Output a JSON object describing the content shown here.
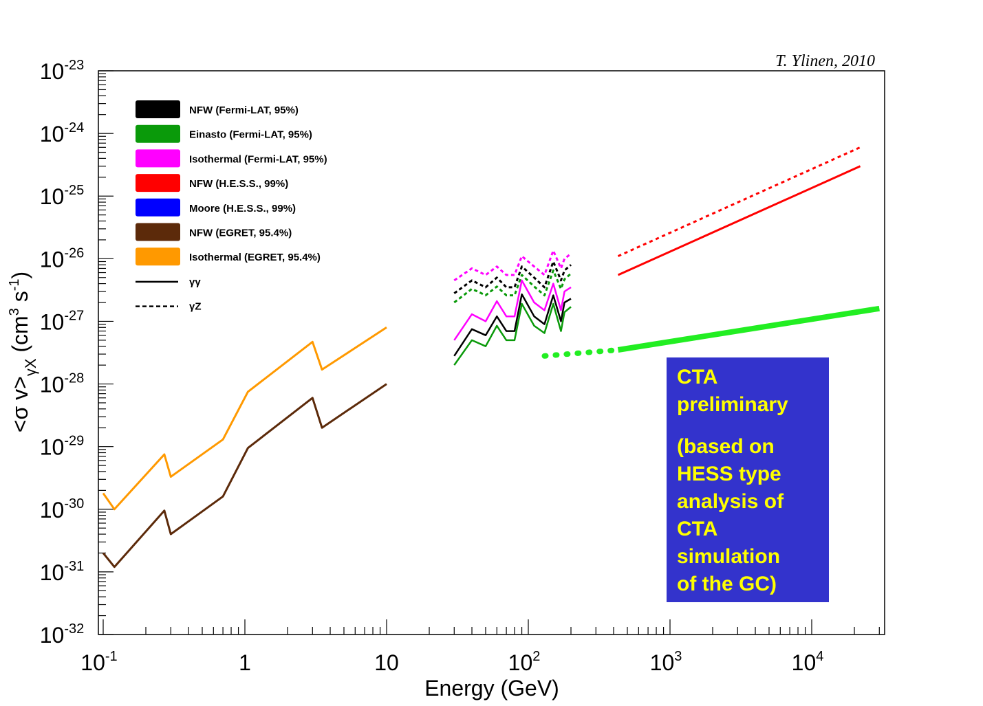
{
  "credit": "T. Ylinen, 2010",
  "chart_data": {
    "type": "line",
    "xlabel": "Energy (GeV)",
    "ylabel": "<σ v>",
    "ylabel_sub": "γX",
    "ylabel_unit_open": "(cm",
    "ylabel_unit_exp1": "3",
    "ylabel_unit_mid": " s",
    "ylabel_unit_exp2": "-1",
    "ylabel_unit_close": ")",
    "xscale": "log",
    "yscale": "log",
    "xlim": [
      0.1,
      30000
    ],
    "ylim": [
      1e-32,
      1e-23
    ],
    "x_ticks": [
      {
        "base": "10",
        "exp": "-1",
        "value": 0.1
      },
      {
        "base": "1",
        "exp": "",
        "value": 1
      },
      {
        "base": "10",
        "exp": "",
        "value": 10
      },
      {
        "base": "10",
        "exp": "2",
        "value": 100
      },
      {
        "base": "10",
        "exp": "3",
        "value": 1000
      },
      {
        "base": "10",
        "exp": "4",
        "value": 10000
      }
    ],
    "y_ticks": [
      {
        "base": "10",
        "exp": "-23",
        "value": 1e-23
      },
      {
        "base": "10",
        "exp": "-24",
        "value": 1e-24
      },
      {
        "base": "10",
        "exp": "-25",
        "value": 1e-25
      },
      {
        "base": "10",
        "exp": "-26",
        "value": 1e-26
      },
      {
        "base": "10",
        "exp": "-27",
        "value": 1e-27
      },
      {
        "base": "10",
        "exp": "-28",
        "value": 1e-28
      },
      {
        "base": "10",
        "exp": "-29",
        "value": 1e-29
      },
      {
        "base": "10",
        "exp": "-30",
        "value": 1e-30
      },
      {
        "base": "10",
        "exp": "-31",
        "value": 1e-31
      },
      {
        "base": "10",
        "exp": "-32",
        "value": 1e-32
      }
    ],
    "legend": [
      {
        "label": "NFW (Fermi-LAT, 95%)",
        "color": "#000000",
        "kind": "box"
      },
      {
        "label": "Einasto (Fermi-LAT, 95%)",
        "color": "#0a9a0a",
        "kind": "box"
      },
      {
        "label": "Isothermal (Fermi-LAT, 95%)",
        "color": "#ff00ff",
        "kind": "box"
      },
      {
        "label": "NFW (H.E.S.S., 99%)",
        "color": "#ff0000",
        "kind": "box"
      },
      {
        "label": "Moore (H.E.S.S., 99%)",
        "color": "#0000ff",
        "kind": "box"
      },
      {
        "label": "NFW (EGRET, 95.4%)",
        "color": "#5c2a0a",
        "kind": "box"
      },
      {
        "label": "Isothermal (EGRET, 95.4%)",
        "color": "#ff9900",
        "kind": "box"
      },
      {
        "label": "γγ",
        "color": "#000000",
        "kind": "solid"
      },
      {
        "label": "γZ",
        "color": "#000000",
        "kind": "dashed"
      }
    ],
    "series": [
      {
        "name": "Isothermal (EGRET, 95.4%)",
        "color": "#ff9900",
        "dash": "",
        "width": 3,
        "x": [
          0.1,
          0.12,
          0.27,
          0.3,
          0.7,
          1.05,
          3.0,
          3.5,
          10
        ],
        "y": [
          1.8e-30,
          1e-30,
          7.5e-30,
          3.3e-30,
          1.3e-29,
          7.5e-29,
          4.7e-28,
          1.7e-28,
          8e-28
        ]
      },
      {
        "name": "NFW (EGRET, 95.4%)",
        "color": "#5c2a0a",
        "dash": "",
        "width": 3,
        "x": [
          0.1,
          0.12,
          0.27,
          0.3,
          0.7,
          1.05,
          3.0,
          3.5,
          10
        ],
        "y": [
          2e-31,
          1.2e-31,
          9.5e-31,
          4e-31,
          1.6e-30,
          9.5e-30,
          6e-29,
          2e-29,
          1e-28
        ]
      },
      {
        "name": "Isothermal (Fermi-LAT, 95%) γγ",
        "color": "#ff00ff",
        "dash": "",
        "width": 2.5,
        "x": [
          30,
          40,
          50,
          60,
          70,
          80,
          90,
          110,
          130,
          150,
          170,
          180,
          200
        ],
        "y": [
          5e-28,
          1.3e-27,
          1e-27,
          2.1e-27,
          1.2e-27,
          1.2e-27,
          4.5e-27,
          2e-27,
          1.5e-27,
          4e-27,
          1.5e-27,
          3e-27,
          3.5e-27
        ]
      },
      {
        "name": "NFW (Fermi-LAT, 95%) γγ",
        "color": "#000000",
        "dash": "",
        "width": 2.5,
        "x": [
          30,
          40,
          50,
          60,
          70,
          80,
          90,
          110,
          130,
          150,
          170,
          180,
          200
        ],
        "y": [
          2.8e-28,
          7.5e-28,
          6e-28,
          1.2e-27,
          7e-28,
          7e-28,
          2.7e-27,
          1.2e-27,
          9e-28,
          2.6e-27,
          1e-27,
          2e-27,
          2.3e-27
        ]
      },
      {
        "name": "Einasto (Fermi-LAT, 95%) γγ",
        "color": "#0a9a0a",
        "dash": "",
        "width": 2.5,
        "x": [
          30,
          40,
          50,
          60,
          70,
          80,
          90,
          110,
          130,
          150,
          170,
          180,
          200
        ],
        "y": [
          2e-28,
          5e-28,
          4e-28,
          8.5e-28,
          5e-28,
          5e-28,
          1.9e-27,
          8.5e-28,
          6.5e-28,
          1.9e-27,
          7e-28,
          1.4e-27,
          1.7e-27
        ]
      },
      {
        "name": "Isothermal (Fermi-LAT, 95%) γZ",
        "color": "#ff00ff",
        "dash": "5,4",
        "width": 3,
        "x": [
          30,
          40,
          50,
          60,
          70,
          80,
          90,
          110,
          130,
          150,
          170,
          180,
          200
        ],
        "y": [
          4.5e-27,
          7e-27,
          5.5e-27,
          7.5e-27,
          5.5e-27,
          5.5e-27,
          1.1e-26,
          7.5e-27,
          5.5e-27,
          1.35e-26,
          7e-27,
          1e-26,
          1.2e-26
        ]
      },
      {
        "name": "NFW (Fermi-LAT, 95%) γZ",
        "color": "#000000",
        "dash": "5,4",
        "width": 3,
        "x": [
          30,
          40,
          50,
          60,
          70,
          80,
          90,
          110,
          130,
          150,
          170,
          180,
          200
        ],
        "y": [
          2.8e-27,
          4.5e-27,
          3.5e-27,
          5e-27,
          3.5e-27,
          3.5e-27,
          7.5e-27,
          5e-27,
          3.5e-27,
          9e-27,
          4.5e-27,
          6.5e-27,
          8e-27
        ]
      },
      {
        "name": "Einasto (Fermi-LAT, 95%) γZ",
        "color": "#0a9a0a",
        "dash": "5,4",
        "width": 3,
        "x": [
          30,
          40,
          50,
          60,
          70,
          80,
          90,
          110,
          130,
          150,
          170,
          180,
          200
        ],
        "y": [
          2e-27,
          3.3e-27,
          2.6e-27,
          3.6e-27,
          2.6e-27,
          2.6e-27,
          5.5e-27,
          3.6e-27,
          2.6e-27,
          6.5e-27,
          3.3e-27,
          4.7e-27,
          5.8e-27
        ]
      },
      {
        "name": "NFW (H.E.S.S., 99%) γγ",
        "color": "#ff0000",
        "dash": "",
        "width": 3,
        "x": [
          430,
          22000
        ],
        "y": [
          5.5e-27,
          3e-25
        ]
      },
      {
        "name": "NFW (H.E.S.S., 99%) γZ",
        "color": "#ff0000",
        "dash": "5,5",
        "width": 3,
        "x": [
          430,
          22000
        ],
        "y": [
          1.1e-26,
          6e-25
        ]
      },
      {
        "name": "CTA preliminary",
        "color": "#22ee22",
        "dash": "",
        "width": 8,
        "x": [
          430,
          30000
        ],
        "y": [
          3.5e-28,
          1.6e-27
        ]
      },
      {
        "name": "CTA preliminary (extrapolated)",
        "color": "#22ee22",
        "dash": "2,14",
        "width": 8,
        "x": [
          130,
          430
        ],
        "y": [
          2.8e-28,
          3.5e-28
        ]
      }
    ]
  },
  "cta_box": {
    "line1": "CTA",
    "line2": "preliminary",
    "line3": "(based on",
    "line4": "HESS type",
    "line5": "analysis of",
    "line6": "CTA",
    "line7": "simulation",
    "line8": "of the GC)",
    "bg_color": "#3333cc",
    "text_color": "#ffff00"
  }
}
